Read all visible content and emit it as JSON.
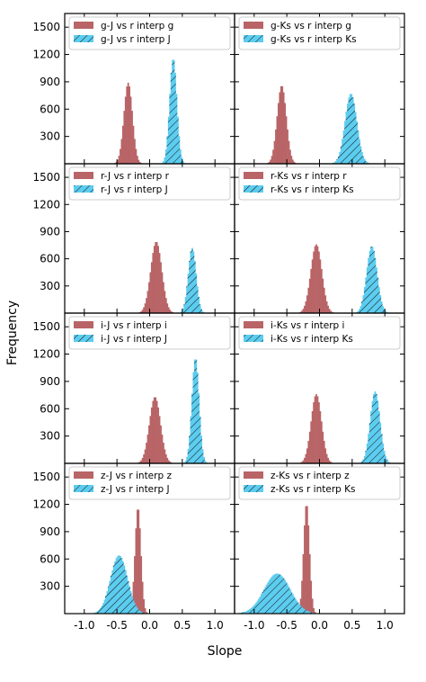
{
  "figure": {
    "ylabel": "Frequency",
    "xlabel": "Slope",
    "y_ticks": [
      300,
      600,
      900,
      1200,
      1500
    ],
    "x_ticks": [
      "-1.0",
      "-0.5",
      "0.0",
      "0.5",
      "1.0"
    ],
    "colors": {
      "red_fill": "#b96466",
      "blue_fill": "#5bcdf0",
      "hatch": "#1a1a1a"
    }
  },
  "chart_data": [
    {
      "type": "bar",
      "panel": "g-J",
      "xlim": [
        -1.3,
        1.3
      ],
      "ylim": [
        0,
        1650
      ],
      "series": [
        {
          "name": "g-J vs r interp g",
          "color": "#b96466",
          "hatch": false,
          "mean": -0.33,
          "sd": 0.065,
          "peak": 890
        },
        {
          "name": "g-J vs r interp J",
          "color": "#5bcdf0",
          "hatch": true,
          "mean": 0.36,
          "sd": 0.055,
          "peak": 1160
        }
      ]
    },
    {
      "type": "bar",
      "panel": "g-Ks",
      "xlim": [
        -1.3,
        1.3
      ],
      "ylim": [
        0,
        1650
      ],
      "series": [
        {
          "name": "g-Ks vs r interp g",
          "color": "#b96466",
          "hatch": false,
          "mean": -0.58,
          "sd": 0.07,
          "peak": 860
        },
        {
          "name": "g-Ks vs r interp Ks",
          "color": "#5bcdf0",
          "hatch": true,
          "mean": 0.48,
          "sd": 0.09,
          "peak": 770
        }
      ]
    },
    {
      "type": "bar",
      "panel": "r-J",
      "xlim": [
        -1.3,
        1.3
      ],
      "ylim": [
        0,
        1650
      ],
      "series": [
        {
          "name": "r-J vs r interp r",
          "color": "#b96466",
          "hatch": false,
          "mean": 0.1,
          "sd": 0.085,
          "peak": 790
        },
        {
          "name": "r-J vs r interp J",
          "color": "#5bcdf0",
          "hatch": true,
          "mean": 0.65,
          "sd": 0.06,
          "peak": 720
        }
      ]
    },
    {
      "type": "bar",
      "panel": "r-Ks",
      "xlim": [
        -1.3,
        1.3
      ],
      "ylim": [
        0,
        1650
      ],
      "series": [
        {
          "name": "r-Ks vs r interp r",
          "color": "#b96466",
          "hatch": false,
          "mean": -0.05,
          "sd": 0.085,
          "peak": 760
        },
        {
          "name": "r-Ks vs r interp Ks",
          "color": "#5bcdf0",
          "hatch": true,
          "mean": 0.8,
          "sd": 0.08,
          "peak": 740
        }
      ]
    },
    {
      "type": "bar",
      "panel": "i-J",
      "xlim": [
        -1.3,
        1.3
      ],
      "ylim": [
        0,
        1650
      ],
      "series": [
        {
          "name": "i-J vs r interp i",
          "color": "#b96466",
          "hatch": false,
          "mean": 0.08,
          "sd": 0.085,
          "peak": 730
        },
        {
          "name": "i-J vs r interp J",
          "color": "#5bcdf0",
          "hatch": true,
          "mean": 0.7,
          "sd": 0.055,
          "peak": 1160
        }
      ]
    },
    {
      "type": "bar",
      "panel": "i-Ks",
      "xlim": [
        -1.3,
        1.3
      ],
      "ylim": [
        0,
        1650
      ],
      "series": [
        {
          "name": "i-Ks vs r interp i",
          "color": "#b96466",
          "hatch": false,
          "mean": -0.05,
          "sd": 0.08,
          "peak": 760
        },
        {
          "name": "i-Ks vs r interp Ks",
          "color": "#5bcdf0",
          "hatch": true,
          "mean": 0.85,
          "sd": 0.075,
          "peak": 790
        }
      ]
    },
    {
      "type": "bar",
      "panel": "z-J",
      "xlim": [
        -1.3,
        1.3
      ],
      "ylim": [
        0,
        1650
      ],
      "series": [
        {
          "name": "z-J vs r interp z",
          "color": "#b96466",
          "hatch": false,
          "mean": -0.18,
          "sd": 0.045,
          "peak": 1170
        },
        {
          "name": "z-J vs r interp J",
          "color": "#5bcdf0",
          "hatch": true,
          "mean": -0.47,
          "sd": 0.13,
          "peak": 640
        }
      ]
    },
    {
      "type": "bar",
      "panel": "z-Ks",
      "xlim": [
        -1.3,
        1.3
      ],
      "ylim": [
        0,
        1650
      ],
      "series": [
        {
          "name": "z-Ks vs r interp z",
          "color": "#b96466",
          "hatch": false,
          "mean": -0.2,
          "sd": 0.045,
          "peak": 1210
        },
        {
          "name": "z-Ks vs r interp Ks",
          "color": "#5bcdf0",
          "hatch": true,
          "mean": -0.65,
          "sd": 0.2,
          "peak": 440
        }
      ]
    }
  ]
}
